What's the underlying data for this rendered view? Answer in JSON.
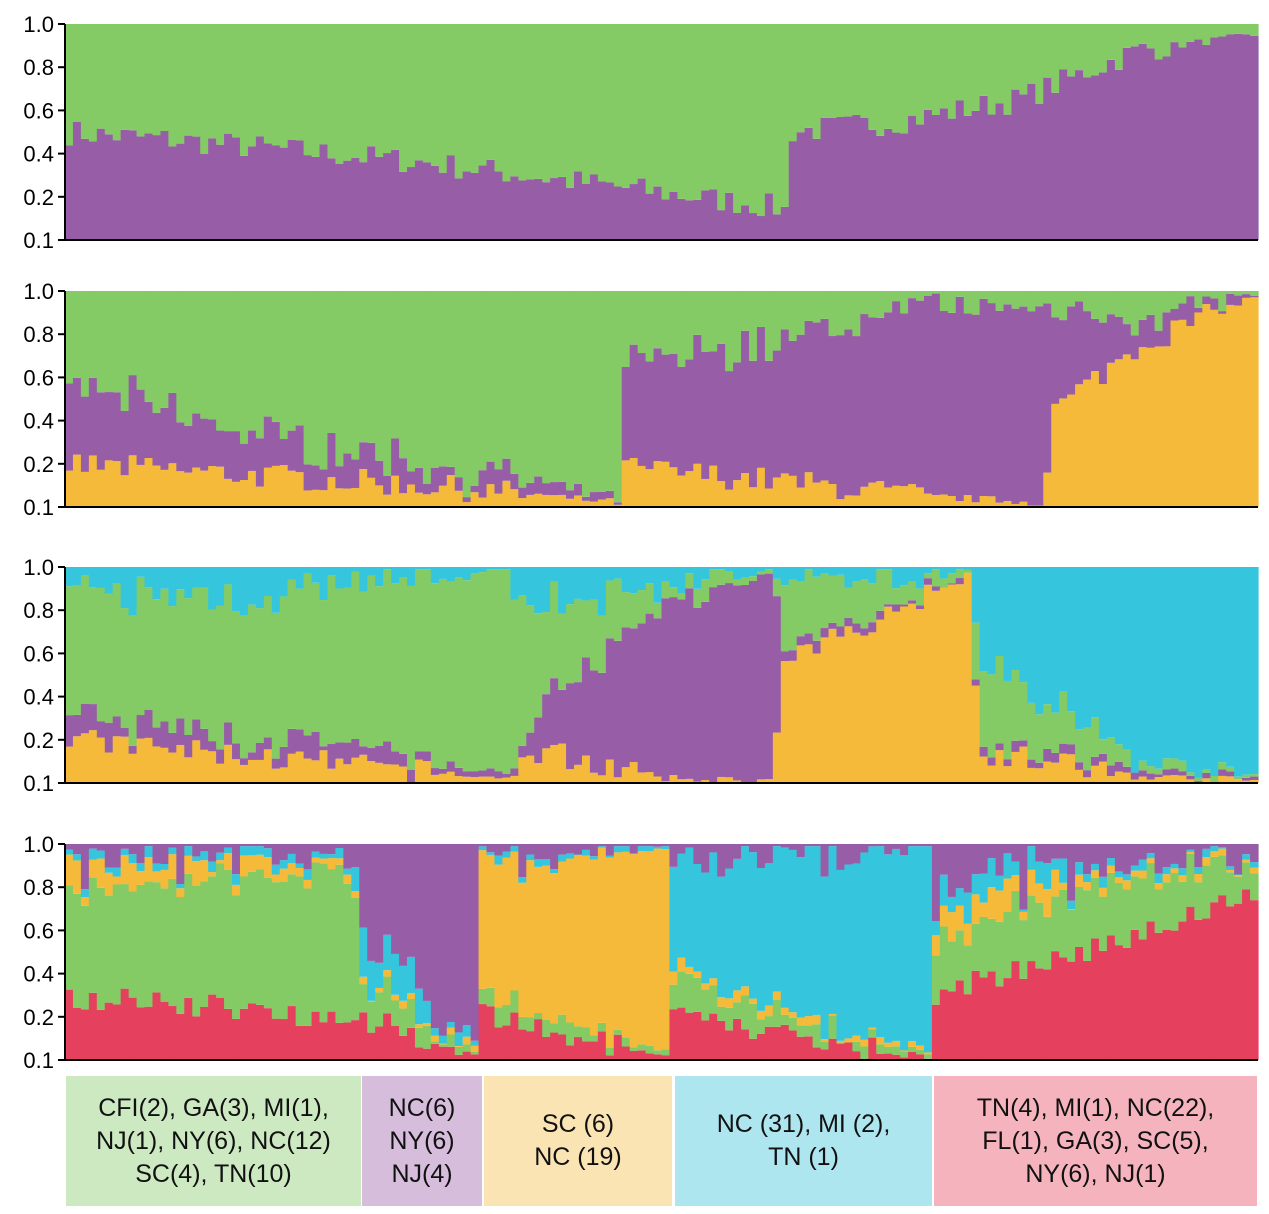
{
  "colors": {
    "purple": "#975EA7",
    "green": "#84CB65",
    "orange": "#F5BA3A",
    "cyan": "#35C6DD",
    "red": "#E5405D"
  },
  "chart_data": [
    {
      "type": "bar",
      "stacked": true,
      "ylim": [
        0.1,
        1.0
      ],
      "yticks": [
        "1.0",
        "0.8",
        "0.6",
        "0.4",
        "0.2",
        "0.1"
      ],
      "n_individuals": 150,
      "series_order": [
        "purple",
        "green"
      ],
      "profile": [
        {
          "x": 0,
          "purple": 0.5
        },
        {
          "x": 0.1,
          "purple": 0.46
        },
        {
          "x": 0.3,
          "purple": 0.36
        },
        {
          "x": 0.5,
          "purple": 0.22
        },
        {
          "x": 0.6,
          "purple": 0.15
        },
        {
          "x": 0.608,
          "purple": 0.12
        },
        {
          "x": 0.609,
          "purple": 0.5
        },
        {
          "x": 0.7,
          "purple": 0.55
        },
        {
          "x": 0.8,
          "purple": 0.65
        },
        {
          "x": 0.9,
          "purple": 0.88
        },
        {
          "x": 1.0,
          "purple": 0.95
        }
      ]
    },
    {
      "type": "bar",
      "stacked": true,
      "ylim": [
        0.1,
        1.0
      ],
      "yticks": [
        "1.0",
        "0.8",
        "0.6",
        "0.4",
        "0.2",
        "0.1"
      ],
      "n_individuals": 150,
      "series_order": [
        "orange",
        "purple",
        "green"
      ],
      "profile": [
        {
          "x": 0,
          "orange": 0.2,
          "purple": 0.38
        },
        {
          "x": 0.15,
          "orange": 0.15,
          "purple": 0.2
        },
        {
          "x": 0.3,
          "orange": 0.1,
          "purple": 0.1
        },
        {
          "x": 0.465,
          "orange": 0.02,
          "purple": 0.02
        },
        {
          "x": 0.47,
          "orange": 0.18,
          "purple": 0.48
        },
        {
          "x": 0.6,
          "orange": 0.12,
          "purple": 0.65
        },
        {
          "x": 0.72,
          "orange": 0.05,
          "purple": 0.88
        },
        {
          "x": 0.82,
          "orange": 0.02,
          "purple": 0.92
        },
        {
          "x": 0.83,
          "orange": 0.45,
          "purple": 0.4
        },
        {
          "x": 0.9,
          "orange": 0.75,
          "purple": 0.15
        },
        {
          "x": 1.0,
          "orange": 0.98,
          "purple": 0.01
        }
      ]
    },
    {
      "type": "bar",
      "stacked": true,
      "ylim": [
        0.1,
        1.0
      ],
      "yticks": [
        "1.0",
        "0.8",
        "0.6",
        "0.4",
        "0.2",
        "0.1"
      ],
      "n_individuals": 150,
      "series_order": [
        "orange",
        "purple",
        "green",
        "cyan"
      ],
      "profile": [
        {
          "x": 0,
          "orange": 0.2,
          "purple": 0.1,
          "green": 0.55
        },
        {
          "x": 0.2,
          "orange": 0.1,
          "purple": 0.08,
          "green": 0.7
        },
        {
          "x": 0.37,
          "orange": 0.02,
          "purple": 0.02,
          "green": 0.95
        },
        {
          "x": 0.4,
          "orange": 0.15,
          "purple": 0.2,
          "green": 0.45
        },
        {
          "x": 0.5,
          "orange": 0.02,
          "purple": 0.8,
          "green": 0.1
        },
        {
          "x": 0.595,
          "orange": 0.01,
          "purple": 0.98,
          "green": 0.01
        },
        {
          "x": 0.6,
          "orange": 0.55,
          "purple": 0.05,
          "green": 0.3
        },
        {
          "x": 0.76,
          "orange": 0.98,
          "purple": 0.01,
          "green": 0.01
        },
        {
          "x": 0.765,
          "orange": 0.15,
          "purple": 0.05,
          "green": 0.4
        },
        {
          "x": 0.9,
          "orange": 0.03,
          "purple": 0.03,
          "green": 0.05
        },
        {
          "x": 1.0,
          "orange": 0.01,
          "purple": 0.01,
          "green": 0.01
        }
      ]
    },
    {
      "type": "bar",
      "stacked": true,
      "ylim": [
        0.1,
        1.0
      ],
      "yticks": [
        "1.0",
        "0.8",
        "0.6",
        "0.4",
        "0.2",
        "0.1"
      ],
      "n_individuals": 150,
      "series_order": [
        "red",
        "green",
        "orange",
        "cyan",
        "purple"
      ],
      "profile": [
        {
          "x": 0,
          "red": 0.3,
          "green": 0.5,
          "orange": 0.1,
          "cyan": 0.04
        },
        {
          "x": 0.24,
          "red": 0.2,
          "green": 0.7,
          "orange": 0.03,
          "cyan": 0.03
        },
        {
          "x": 0.25,
          "red": 0.2,
          "green": 0.15,
          "orange": 0.02,
          "cyan": 0.2
        },
        {
          "x": 0.345,
          "red": 0.01,
          "green": 0.02,
          "orange": 0.02,
          "cyan": 0.02
        },
        {
          "x": 0.35,
          "red": 0.2,
          "green": 0.1,
          "orange": 0.6,
          "cyan": 0.03
        },
        {
          "x": 0.505,
          "red": 0.01,
          "green": 0.01,
          "orange": 0.96,
          "cyan": 0.01
        },
        {
          "x": 0.51,
          "red": 0.2,
          "green": 0.15,
          "orange": 0.05,
          "cyan": 0.5
        },
        {
          "x": 0.725,
          "red": 0.01,
          "green": 0.01,
          "orange": 0.01,
          "cyan": 0.96
        },
        {
          "x": 0.73,
          "red": 0.3,
          "green": 0.25,
          "orange": 0.15,
          "cyan": 0.1
        },
        {
          "x": 0.85,
          "red": 0.5,
          "green": 0.3,
          "orange": 0.05,
          "cyan": 0.05
        },
        {
          "x": 1.0,
          "red": 0.78,
          "green": 0.16,
          "orange": 0.01,
          "cyan": 0.01
        }
      ]
    }
  ],
  "legend": [
    {
      "text": "CFI(2), GA(3), MI(1),\nNJ(1), NY(6), NC(12)\nSC(4), TN(10)",
      "color": "#CDE9C1"
    },
    {
      "text": "NC(6)\nNY(6)\nNJ(4)",
      "color": "#D7BDDC"
    },
    {
      "text": "SC (6)\nNC (19)",
      "color": "#FBE4B3"
    },
    {
      "text": "NC (31), MI (2),\nTN (1)",
      "color": "#AEE6EF"
    },
    {
      "text": "TN(4), MI(1), NC(22),\nFL(1), GA(3), SC(5),\nNY(6), NJ(1)",
      "color": "#F5B3BE"
    }
  ]
}
